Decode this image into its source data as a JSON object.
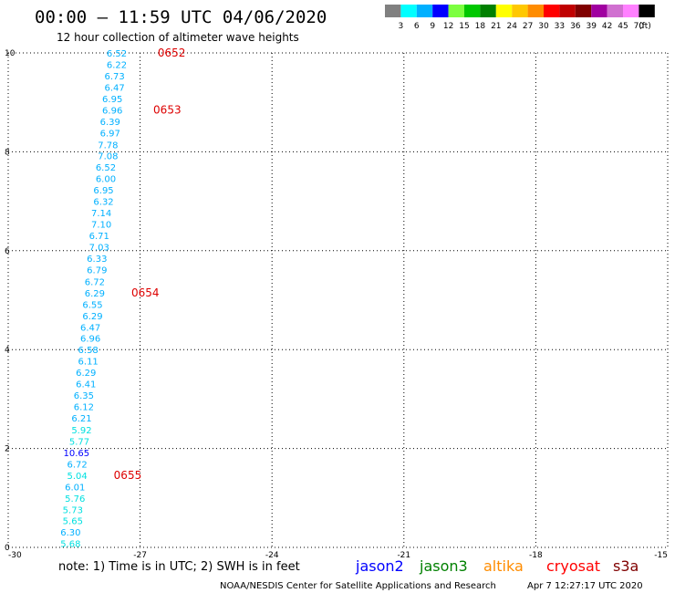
{
  "title": "00:00 – 11:59 UTC 04/06/2020",
  "subtitle": "12 hour collection of altimeter wave heights",
  "legend": {
    "labels": [
      "3",
      "6",
      "9",
      "12",
      "15",
      "18",
      "21",
      "24",
      "27",
      "30",
      "33",
      "36",
      "39",
      "42",
      "45",
      "70"
    ],
    "unit": "(ft)",
    "colors": [
      "#808080",
      "#00ffff",
      "#00b0ff",
      "#0000ff",
      "#7cff40",
      "#00c800",
      "#008000",
      "#ffff00",
      "#ffc800",
      "#ff8c00",
      "#ff0000",
      "#c00000",
      "#800000",
      "#a000a0",
      "#d070d0",
      "#ff80ff",
      "#000000"
    ]
  },
  "chart_data": {
    "type": "scatter",
    "x_ticks": [
      "-30",
      "-27",
      "-24",
      "-21",
      "-18",
      "-15"
    ],
    "y_ticks": [
      "0",
      "2",
      "4",
      "6",
      "8",
      "10"
    ],
    "xlim": [
      -30,
      -15
    ],
    "ylim": [
      0,
      10
    ],
    "grid": true,
    "points": [
      {
        "x": -27.3,
        "y": 10.0,
        "label": "6.52"
      },
      {
        "x": -27.3,
        "y": 9.77,
        "label": "6.22"
      },
      {
        "x": -27.35,
        "y": 9.54,
        "label": "6.73"
      },
      {
        "x": -27.35,
        "y": 9.31,
        "label": "6.47"
      },
      {
        "x": -27.4,
        "y": 9.08,
        "label": "6.95"
      },
      {
        "x": -27.4,
        "y": 8.85,
        "label": "6.96"
      },
      {
        "x": -27.45,
        "y": 8.62,
        "label": "6.39"
      },
      {
        "x": -27.45,
        "y": 8.39,
        "label": "6.97"
      },
      {
        "x": -27.5,
        "y": 8.15,
        "label": "7.78"
      },
      {
        "x": -27.5,
        "y": 7.92,
        "label": "7.08"
      },
      {
        "x": -27.55,
        "y": 7.69,
        "label": "6.52"
      },
      {
        "x": -27.55,
        "y": 7.46,
        "label": "6.00"
      },
      {
        "x": -27.6,
        "y": 7.23,
        "label": "6.95"
      },
      {
        "x": -27.6,
        "y": 7.0,
        "label": "6.32"
      },
      {
        "x": -27.65,
        "y": 6.77,
        "label": "7.14"
      },
      {
        "x": -27.65,
        "y": 6.54,
        "label": "7.10"
      },
      {
        "x": -27.7,
        "y": 6.31,
        "label": "6.71"
      },
      {
        "x": -27.7,
        "y": 6.08,
        "label": "7.03"
      },
      {
        "x": -27.75,
        "y": 5.85,
        "label": "6.33"
      },
      {
        "x": -27.75,
        "y": 5.62,
        "label": "6.79"
      },
      {
        "x": -27.8,
        "y": 5.38,
        "label": "6.72"
      },
      {
        "x": -27.8,
        "y": 5.15,
        "label": "6.29"
      },
      {
        "x": -27.85,
        "y": 4.92,
        "label": "6.55"
      },
      {
        "x": -27.85,
        "y": 4.69,
        "label": "6.29"
      },
      {
        "x": -27.9,
        "y": 4.46,
        "label": "6.47"
      },
      {
        "x": -27.9,
        "y": 4.23,
        "label": "6.96"
      },
      {
        "x": -27.95,
        "y": 4.0,
        "label": "6.58"
      },
      {
        "x": -27.95,
        "y": 3.77,
        "label": "6.11"
      },
      {
        "x": -28.0,
        "y": 3.54,
        "label": "6.29"
      },
      {
        "x": -28.0,
        "y": 3.31,
        "label": "6.41"
      },
      {
        "x": -28.05,
        "y": 3.08,
        "label": "6.35"
      },
      {
        "x": -28.05,
        "y": 2.85,
        "label": "6.12"
      },
      {
        "x": -28.1,
        "y": 2.62,
        "label": "6.21"
      },
      {
        "x": -28.1,
        "y": 2.38,
        "label": "5.92"
      },
      {
        "x": -28.15,
        "y": 2.15,
        "label": "5.77"
      },
      {
        "x": -28.15,
        "y": 1.92,
        "label": "10.65"
      },
      {
        "x": -28.2,
        "y": 1.69,
        "label": "6.72"
      },
      {
        "x": -28.2,
        "y": 1.46,
        "label": "5.04"
      },
      {
        "x": -28.25,
        "y": 1.23,
        "label": "6.01"
      },
      {
        "x": -28.25,
        "y": 1.0,
        "label": "5.76"
      },
      {
        "x": -28.3,
        "y": 0.77,
        "label": "5.73"
      },
      {
        "x": -28.3,
        "y": 0.54,
        "label": "5.65"
      },
      {
        "x": -28.35,
        "y": 0.31,
        "label": "6.30"
      },
      {
        "x": -28.35,
        "y": 0.08,
        "label": "5.68"
      }
    ],
    "pass_times": [
      {
        "x": -26.6,
        "y": 10.0,
        "label": "0652"
      },
      {
        "x": -26.7,
        "y": 8.85,
        "label": "0653"
      },
      {
        "x": -27.2,
        "y": 5.15,
        "label": "0654"
      },
      {
        "x": -27.6,
        "y": 1.46,
        "label": "0655"
      }
    ]
  },
  "note": "note: 1) Time is in UTC; 2) SWH is in feet",
  "satellites": [
    {
      "name": "jason2",
      "color": "#0000ff"
    },
    {
      "name": "jason3",
      "color": "#008000"
    },
    {
      "name": "altika",
      "color": "#ff8c00"
    },
    {
      "name": "cryosat",
      "color": "#ff0000"
    },
    {
      "name": "s3a",
      "color": "#800000"
    }
  ],
  "credit": "NOAA/NESDIS Center for Satellite Applications and Research",
  "timestamp": "Apr  7 12:27:17 UTC 2020"
}
